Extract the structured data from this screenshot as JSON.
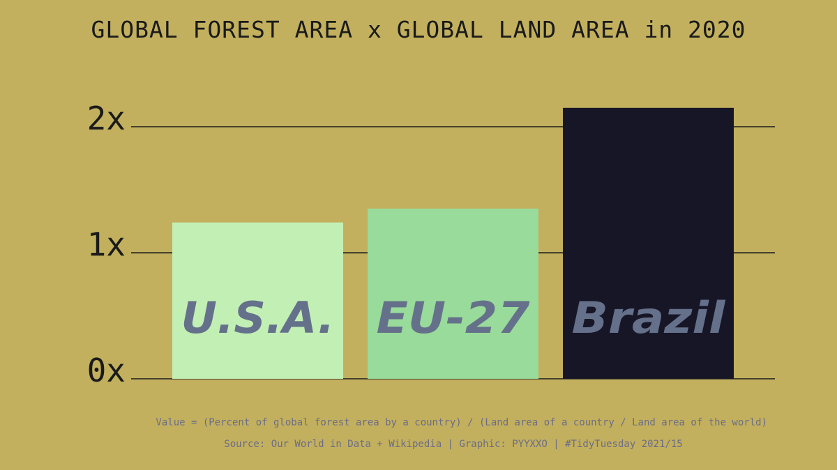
{
  "chart_data": {
    "type": "bar",
    "title": "GLOBAL FOREST AREA x GLOBAL LAND AREA in 2020",
    "categories": [
      "U.S.A.",
      "EU-27",
      "Brazil"
    ],
    "values": [
      1.24,
      1.35,
      2.15
    ],
    "bar_colors": [
      "#c2f0b4",
      "#99db9a",
      "#171627"
    ],
    "label_color": "#65718a",
    "ylim": [
      0,
      2.2
    ],
    "yticks": [
      0,
      1,
      2
    ],
    "ytick_labels": [
      "0x",
      "1x",
      "2x"
    ],
    "grid": true,
    "xlabel": "",
    "ylabel": "",
    "note": "Value = (Percent of global forest area by a country) / (Land area of a country / Land area of the world)",
    "source": "Source: Our World in Data + Wikipedia | Graphic: PYYXXO | #TidyTuesday 2021/15"
  },
  "colors": {
    "background": "#c2b05e",
    "text": "#1a1a1a",
    "note": "#6c6c86"
  }
}
